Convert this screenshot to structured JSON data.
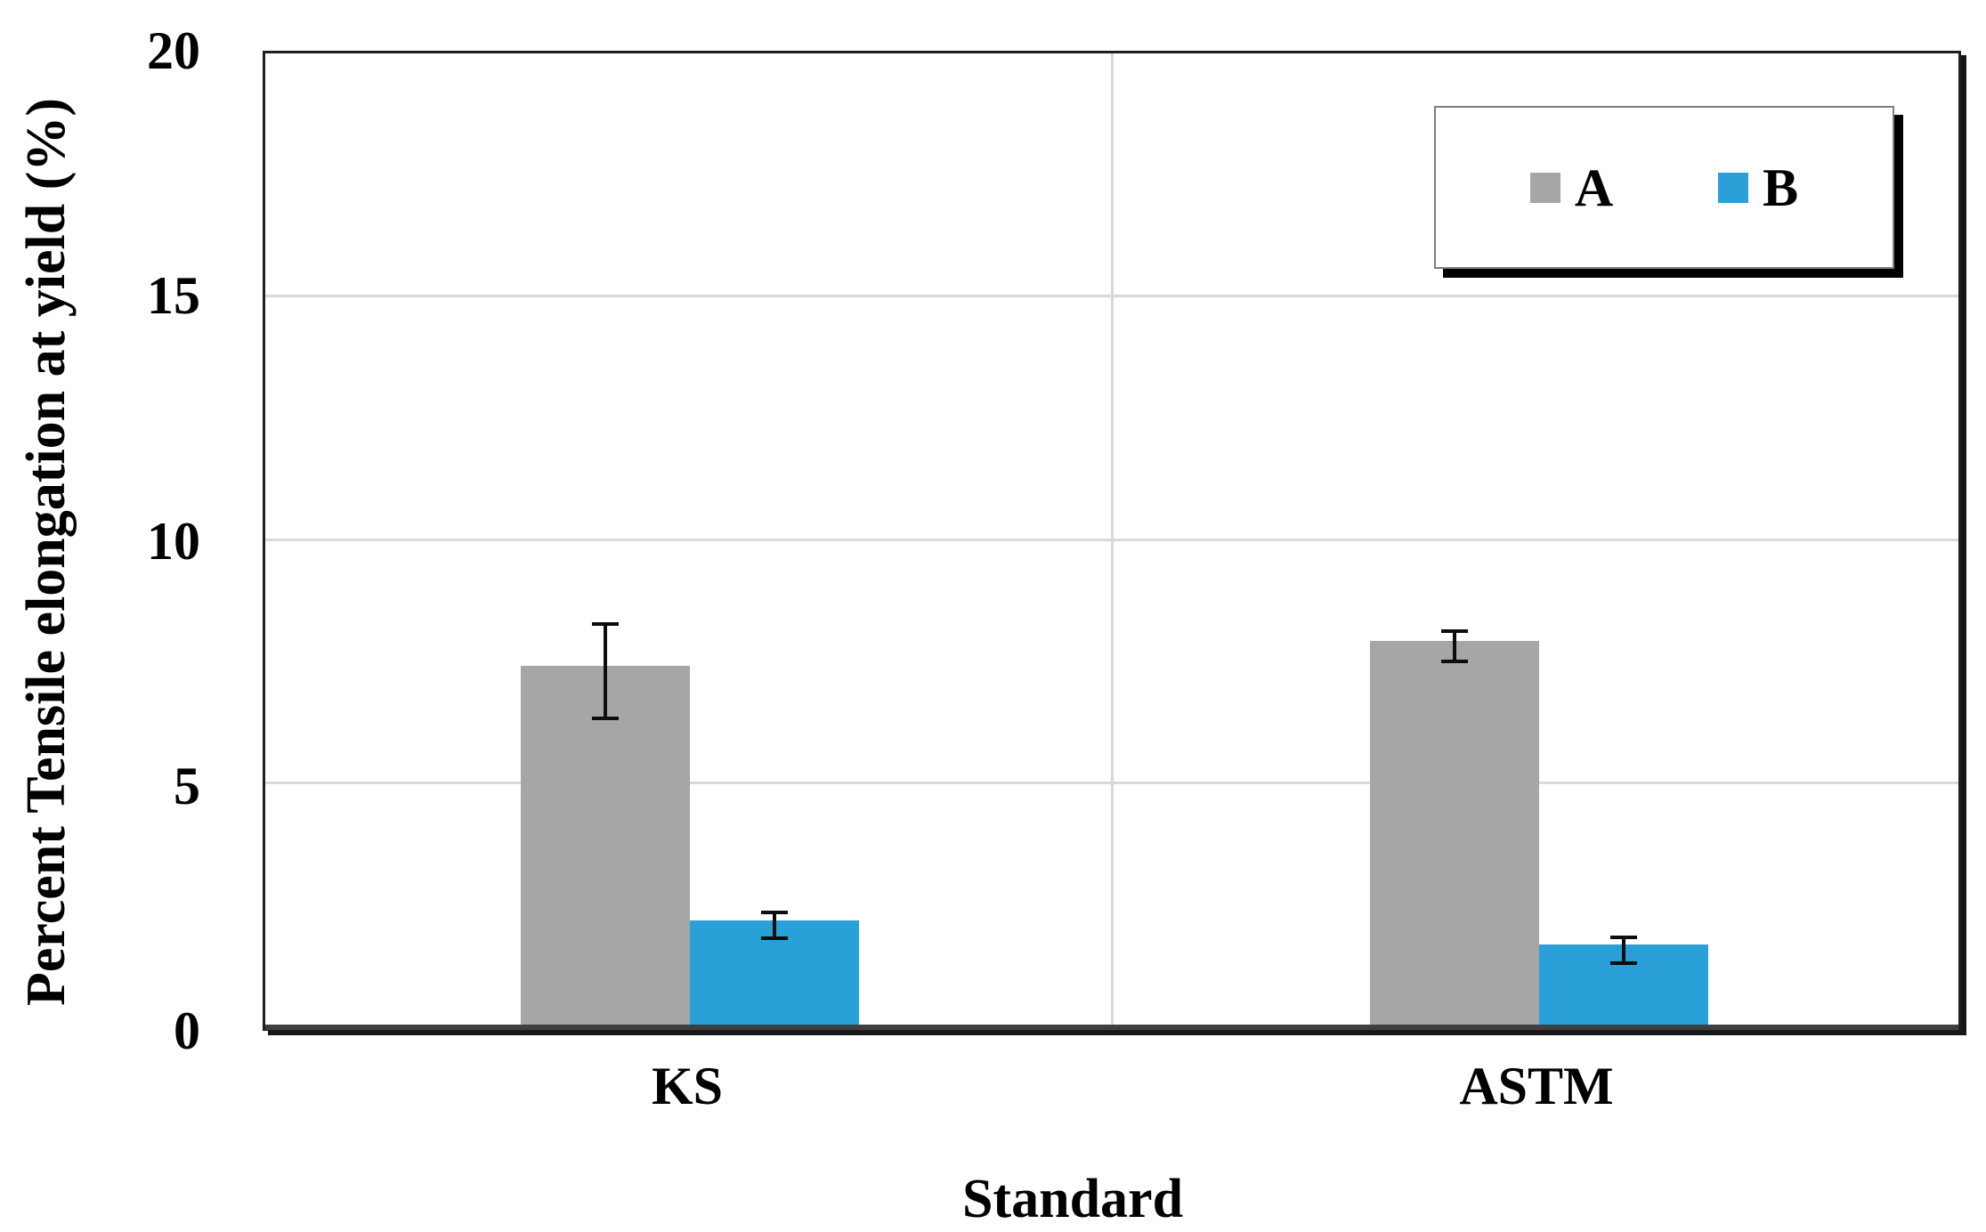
{
  "chart_data": {
    "type": "bar",
    "title": "",
    "categories": [
      "KS",
      "ASTM"
    ],
    "series": [
      {
        "name": "A",
        "color": "#a6a6a6",
        "values": [
          7.4,
          7.9
        ],
        "error_bars": [
          1.0,
          0.35
        ]
      },
      {
        "name": "B",
        "color": "#29a0d8",
        "values": [
          2.2,
          1.7
        ],
        "error_bars": [
          0.3,
          0.3
        ]
      }
    ],
    "xlabel": "Standard",
    "ylabel": "Percent Tensile elongation at yield (%)",
    "ylim": [
      0,
      20
    ],
    "yticks": [
      0,
      5,
      10,
      15,
      20
    ],
    "grid": {
      "horizontal": true,
      "vertical_mid": true,
      "color": "#d9d9d9"
    },
    "legend": {
      "position": "top-right",
      "entries": [
        "A",
        "B"
      ]
    },
    "colors": {
      "axis_line": "#3f3f3f",
      "plot_border": "#1f1f1f",
      "gridline": "#d9d9d9",
      "error_bar": "#0d0d0d",
      "text": "#000000",
      "background": "#ffffff"
    }
  }
}
